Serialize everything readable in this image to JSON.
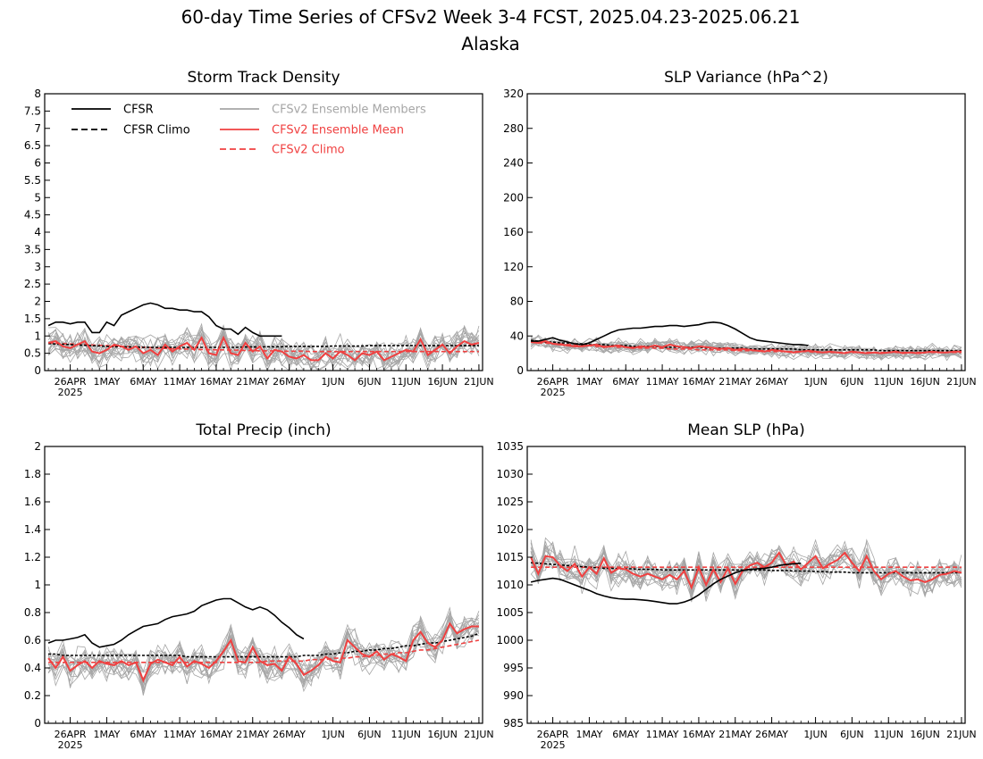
{
  "figure": {
    "title": "60-day Time Series of CFSv2 Week 3-4 FCST, 2025.04.23-2025.06.21",
    "subtitle": "Alaska"
  },
  "colors": {
    "cfsr": "#000000",
    "ensemble_members": "#a6a6a6",
    "ensemble_mean": "#f04040",
    "cfsv2_climo": "#f04040",
    "cfsr_climo": "#000000"
  },
  "legend": {
    "cfsr": "CFSR",
    "cfsr_climo": "CFSR Climo",
    "members": "CFSv2 Ensemble Members",
    "mean": "CFSv2 Ensemble Mean",
    "climo": "CFSv2 Climo"
  },
  "x_axis": {
    "days": 60,
    "start": "2025-04-23",
    "end": "2025-06-21",
    "tick_labels": [
      "26APR",
      "1MAY",
      "6MAY",
      "11MAY",
      "16MAY",
      "21MAY",
      "26MAY",
      "1JUN",
      "6JUN",
      "11JUN",
      "16JUN",
      "21JUN"
    ],
    "tick_days": [
      3,
      8,
      13,
      18,
      23,
      28,
      33,
      39,
      44,
      49,
      54,
      59
    ],
    "year_label": "2025"
  },
  "chart_data": [
    {
      "type": "line",
      "title": "Storm Track Density",
      "ylim": [
        0,
        8
      ],
      "yticks": [
        "0",
        "0.5",
        "1",
        "1.5",
        "2",
        "2.5",
        "3",
        "3.5",
        "4",
        "4.5",
        "5",
        "5.5",
        "6",
        "6.5",
        "7",
        "7.5",
        "8"
      ],
      "yvals": [
        0,
        0.5,
        1,
        1.5,
        2,
        2.5,
        3,
        3.5,
        4,
        4.5,
        5,
        5.5,
        6,
        6.5,
        7,
        7.5,
        8
      ],
      "legend_placement": "top-left",
      "member_spread": 0.35,
      "cfsr": [
        1.3,
        1.4,
        1.4,
        1.35,
        1.4,
        1.4,
        1.1,
        1.1,
        1.4,
        1.3,
        1.6,
        1.7,
        1.8,
        1.9,
        1.95,
        1.9,
        1.8,
        1.8,
        1.75,
        1.75,
        1.7,
        1.7,
        1.55,
        1.3,
        1.2,
        1.2,
        1.05,
        1.25,
        1.1,
        1.0,
        1.0,
        1.0,
        1.0
      ],
      "cfsr_climo": [
        0.78,
        0.77,
        0.76,
        0.75,
        0.74,
        0.73,
        0.72,
        0.71,
        0.7,
        0.69,
        0.69,
        0.68,
        0.68,
        0.67,
        0.67,
        0.67,
        0.67,
        0.67,
        0.67,
        0.67,
        0.67,
        0.67,
        0.67,
        0.67,
        0.67,
        0.67,
        0.67,
        0.68,
        0.68,
        0.68,
        0.69,
        0.69,
        0.69,
        0.7,
        0.7,
        0.7,
        0.7,
        0.7,
        0.7,
        0.71,
        0.71,
        0.71,
        0.71,
        0.71,
        0.72,
        0.72,
        0.72,
        0.72,
        0.72,
        0.72,
        0.72,
        0.72,
        0.72,
        0.72,
        0.72,
        0.72,
        0.72,
        0.72,
        0.72,
        0.72
      ],
      "cfsv2_climo": [
        0.8,
        0.79,
        0.78,
        0.77,
        0.76,
        0.75,
        0.74,
        0.73,
        0.72,
        0.71,
        0.7,
        0.69,
        0.68,
        0.67,
        0.66,
        0.65,
        0.64,
        0.63,
        0.63,
        0.62,
        0.62,
        0.61,
        0.61,
        0.6,
        0.6,
        0.59,
        0.59,
        0.58,
        0.58,
        0.57,
        0.57,
        0.57,
        0.56,
        0.56,
        0.56,
        0.56,
        0.55,
        0.55,
        0.55,
        0.55,
        0.55,
        0.55,
        0.55,
        0.55,
        0.55,
        0.55,
        0.55,
        0.55,
        0.55,
        0.55,
        0.55,
        0.55,
        0.55,
        0.55,
        0.55,
        0.55,
        0.55,
        0.55,
        0.55,
        0.55
      ],
      "ensemble_mean": [
        0.8,
        0.85,
        0.7,
        0.65,
        0.75,
        0.85,
        0.55,
        0.5,
        0.6,
        0.75,
        0.7,
        0.6,
        0.7,
        0.5,
        0.6,
        0.45,
        0.75,
        0.55,
        0.7,
        0.8,
        0.6,
        0.95,
        0.5,
        0.45,
        0.95,
        0.5,
        0.45,
        0.8,
        0.55,
        0.7,
        0.35,
        0.6,
        0.55,
        0.4,
        0.35,
        0.45,
        0.3,
        0.3,
        0.5,
        0.35,
        0.55,
        0.45,
        0.3,
        0.5,
        0.45,
        0.55,
        0.3,
        0.4,
        0.5,
        0.6,
        0.55,
        0.9,
        0.45,
        0.6,
        0.75,
        0.5,
        0.7,
        0.85,
        0.75,
        0.8
      ]
    },
    {
      "type": "line",
      "title": "SLP Variance (hPa^2)",
      "ylim": [
        0,
        320
      ],
      "yticks": [
        "0",
        "40",
        "80",
        "120",
        "160",
        "200",
        "240",
        "280",
        "320"
      ],
      "yvals": [
        0,
        40,
        80,
        120,
        160,
        200,
        240,
        280,
        320
      ],
      "member_spread": 6,
      "cfsr": [
        34,
        34,
        36,
        38,
        35,
        33,
        31,
        30,
        32,
        36,
        40,
        44,
        47,
        48,
        49,
        49,
        50,
        51,
        51,
        52,
        52,
        51,
        52,
        53,
        55,
        56,
        55,
        52,
        48,
        43,
        38,
        35,
        34,
        33,
        32,
        31,
        30,
        30,
        29
      ],
      "cfsr_climo": [
        35,
        34,
        33,
        33,
        32,
        32,
        31,
        31,
        30,
        30,
        30,
        29,
        29,
        29,
        28,
        28,
        28,
        28,
        27,
        27,
        27,
        27,
        27,
        27,
        26,
        26,
        26,
        26,
        26,
        26,
        25,
        25,
        25,
        25,
        25,
        25,
        25,
        24,
        24,
        24,
        24,
        24,
        24,
        24,
        24,
        24,
        24,
        24,
        23,
        23,
        23,
        23,
        23,
        23,
        23,
        23,
        23,
        23,
        23,
        23
      ],
      "cfsv2_climo": [
        33,
        32,
        32,
        31,
        31,
        30,
        30,
        29,
        29,
        28,
        28,
        28,
        27,
        27,
        27,
        26,
        26,
        26,
        26,
        25,
        25,
        25,
        25,
        24,
        24,
        24,
        24,
        24,
        23,
        23,
        23,
        23,
        23,
        22,
        22,
        22,
        22,
        22,
        22,
        21,
        21,
        21,
        21,
        21,
        21,
        21,
        21,
        21,
        21,
        21,
        21,
        21,
        21,
        21,
        21,
        21,
        21,
        21,
        21,
        21
      ],
      "ensemble_mean": [
        33,
        32,
        34,
        31,
        30,
        29,
        28,
        28,
        29,
        30,
        27,
        28,
        29,
        27,
        26,
        28,
        27,
        29,
        27,
        30,
        28,
        27,
        26,
        28,
        27,
        26,
        25,
        26,
        24,
        25,
        24,
        23,
        22,
        24,
        23,
        22,
        21,
        22,
        23,
        22,
        21,
        22,
        21,
        20,
        22,
        21,
        20,
        21,
        20,
        21,
        22,
        20,
        21,
        20,
        21,
        22,
        21,
        21,
        22,
        22
      ]
    },
    {
      "type": "line",
      "title": "Total Precip (inch)",
      "ylim": [
        0,
        2
      ],
      "yticks": [
        "0",
        "0.2",
        "0.4",
        "0.6",
        "0.8",
        "1",
        "1.2",
        "1.4",
        "1.6",
        "1.8",
        "2"
      ],
      "yvals": [
        0,
        0.2,
        0.4,
        0.6,
        0.8,
        1,
        1.2,
        1.4,
        1.6,
        1.8,
        2
      ],
      "member_spread": 0.09,
      "cfsr": [
        0.58,
        0.6,
        0.6,
        0.61,
        0.62,
        0.64,
        0.58,
        0.55,
        0.56,
        0.57,
        0.6,
        0.64,
        0.67,
        0.7,
        0.71,
        0.72,
        0.75,
        0.77,
        0.78,
        0.79,
        0.81,
        0.85,
        0.87,
        0.89,
        0.9,
        0.9,
        0.87,
        0.84,
        0.82,
        0.84,
        0.82,
        0.78,
        0.73,
        0.69,
        0.64,
        0.61
      ],
      "cfsr_climo": [
        0.5,
        0.5,
        0.49,
        0.49,
        0.49,
        0.49,
        0.49,
        0.49,
        0.49,
        0.49,
        0.49,
        0.49,
        0.49,
        0.49,
        0.49,
        0.49,
        0.49,
        0.49,
        0.49,
        0.48,
        0.48,
        0.48,
        0.48,
        0.48,
        0.48,
        0.48,
        0.48,
        0.48,
        0.48,
        0.48,
        0.48,
        0.48,
        0.48,
        0.48,
        0.48,
        0.49,
        0.49,
        0.49,
        0.5,
        0.5,
        0.51,
        0.51,
        0.52,
        0.52,
        0.53,
        0.53,
        0.54,
        0.54,
        0.55,
        0.56,
        0.56,
        0.57,
        0.58,
        0.58,
        0.59,
        0.6,
        0.61,
        0.62,
        0.63,
        0.65
      ],
      "cfsv2_climo": [
        0.44,
        0.44,
        0.44,
        0.44,
        0.44,
        0.44,
        0.44,
        0.44,
        0.44,
        0.44,
        0.44,
        0.44,
        0.44,
        0.44,
        0.44,
        0.44,
        0.44,
        0.44,
        0.44,
        0.44,
        0.44,
        0.44,
        0.44,
        0.44,
        0.44,
        0.44,
        0.44,
        0.44,
        0.44,
        0.44,
        0.45,
        0.45,
        0.45,
        0.45,
        0.45,
        0.45,
        0.46,
        0.46,
        0.46,
        0.47,
        0.47,
        0.47,
        0.48,
        0.48,
        0.49,
        0.49,
        0.5,
        0.5,
        0.51,
        0.51,
        0.52,
        0.53,
        0.53,
        0.54,
        0.55,
        0.56,
        0.57,
        0.58,
        0.59,
        0.6
      ],
      "ensemble_mean": [
        0.47,
        0.4,
        0.48,
        0.38,
        0.42,
        0.45,
        0.4,
        0.45,
        0.43,
        0.42,
        0.45,
        0.42,
        0.44,
        0.31,
        0.43,
        0.46,
        0.44,
        0.42,
        0.48,
        0.41,
        0.45,
        0.43,
        0.4,
        0.45,
        0.52,
        0.6,
        0.45,
        0.44,
        0.55,
        0.45,
        0.42,
        0.43,
        0.38,
        0.48,
        0.43,
        0.35,
        0.38,
        0.42,
        0.48,
        0.45,
        0.44,
        0.6,
        0.55,
        0.5,
        0.48,
        0.52,
        0.46,
        0.5,
        0.48,
        0.45,
        0.6,
        0.66,
        0.58,
        0.55,
        0.6,
        0.72,
        0.65,
        0.68,
        0.7,
        0.7
      ]
    },
    {
      "type": "line",
      "title": "Mean SLP (hPa)",
      "ylim": [
        985,
        1035
      ],
      "yticks": [
        "985",
        "990",
        "995",
        "1000",
        "1005",
        "1010",
        "1015",
        "1020",
        "1025",
        "1030",
        "1035"
      ],
      "yvals": [
        985,
        990,
        995,
        1000,
        1005,
        1010,
        1015,
        1020,
        1025,
        1030,
        1035
      ],
      "member_spread": 2.2,
      "cfsr": [
        1010.5,
        1010.8,
        1011.0,
        1011.2,
        1011.0,
        1010.5,
        1010.0,
        1009.5,
        1009.0,
        1008.4,
        1008.0,
        1007.7,
        1007.5,
        1007.4,
        1007.4,
        1007.3,
        1007.2,
        1007.0,
        1006.8,
        1006.6,
        1006.6,
        1006.9,
        1007.4,
        1008.2,
        1009.2,
        1010.2,
        1011.0,
        1011.6,
        1012.2,
        1012.6,
        1012.8,
        1012.9,
        1013.0,
        1013.2,
        1013.5,
        1013.7,
        1013.8,
        1013.9
      ],
      "cfsr_climo": [
        1014.0,
        1013.9,
        1013.8,
        1013.7,
        1013.6,
        1013.5,
        1013.4,
        1013.3,
        1013.2,
        1013.1,
        1013.0,
        1013.0,
        1012.9,
        1012.9,
        1012.9,
        1012.8,
        1012.8,
        1012.8,
        1012.7,
        1012.7,
        1012.7,
        1012.7,
        1012.7,
        1012.7,
        1012.7,
        1012.7,
        1012.7,
        1012.7,
        1012.7,
        1012.7,
        1012.7,
        1012.7,
        1012.7,
        1012.6,
        1012.6,
        1012.6,
        1012.5,
        1012.5,
        1012.5,
        1012.4,
        1012.4,
        1012.3,
        1012.3,
        1012.3,
        1012.2,
        1012.2,
        1012.2,
        1012.2,
        1012.2,
        1012.2,
        1012.2,
        1012.2,
        1012.2,
        1012.2,
        1012.2,
        1012.2,
        1012.2,
        1012.2,
        1012.2,
        1012.2
      ],
      "cfsv2_climo": [
        1013.2,
        1013.2,
        1013.2,
        1013.2,
        1013.2,
        1013.2,
        1013.2,
        1013.2,
        1013.2,
        1013.2,
        1013.2,
        1013.2,
        1013.2,
        1013.2,
        1013.2,
        1013.2,
        1013.2,
        1013.2,
        1013.2,
        1013.2,
        1013.2,
        1013.2,
        1013.2,
        1013.2,
        1013.2,
        1013.2,
        1013.2,
        1013.2,
        1013.2,
        1013.2,
        1013.2,
        1013.2,
        1013.2,
        1013.2,
        1013.2,
        1013.2,
        1013.2,
        1013.2,
        1013.2,
        1013.2,
        1013.2,
        1013.2,
        1013.2,
        1013.2,
        1013.2,
        1013.2,
        1013.2,
        1013.2,
        1013.2,
        1013.2,
        1013.2,
        1013.2,
        1013.2,
        1013.2,
        1013.2,
        1013.2,
        1013.2,
        1013.2,
        1013.2,
        1013.2
      ],
      "ensemble_mean": [
        1015.0,
        1012.0,
        1015.2,
        1015.0,
        1013.5,
        1012.5,
        1013.8,
        1011.5,
        1013.2,
        1012.0,
        1014.8,
        1012.2,
        1013.0,
        1012.8,
        1012.0,
        1011.5,
        1012.0,
        1011.5,
        1011.0,
        1011.8,
        1011.0,
        1012.5,
        1009.5,
        1013.2,
        1010.0,
        1012.8,
        1010.5,
        1013.0,
        1010.2,
        1012.5,
        1013.5,
        1014.0,
        1013.2,
        1014.0,
        1015.8,
        1013.5,
        1014.2,
        1012.8,
        1014.0,
        1015.2,
        1013.0,
        1013.8,
        1014.5,
        1015.8,
        1014.0,
        1012.5,
        1015.2,
        1012.5,
        1011.0,
        1012.0,
        1012.5,
        1011.5,
        1010.8,
        1011.0,
        1010.5,
        1011.0,
        1011.8,
        1012.0,
        1012.5,
        1012.2
      ]
    }
  ]
}
